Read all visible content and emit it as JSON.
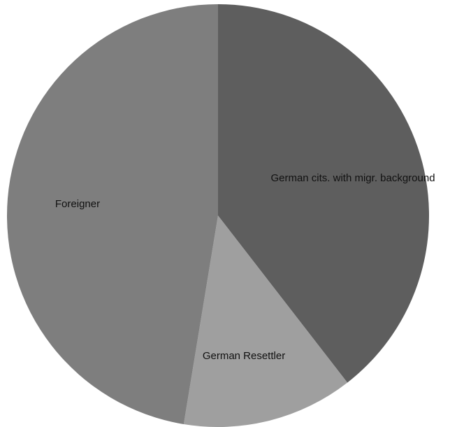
{
  "chart_data": {
    "type": "pie",
    "title": "",
    "series": [
      {
        "values": [
          39.5,
          13.1,
          47.4
        ]
      }
    ],
    "categories": [
      "German cits. with migr. background",
      "German Resettler",
      "Foreigner"
    ],
    "colors": [
      "#5e5e5e",
      "#9f9f9f",
      "#7e7e7e"
    ],
    "start_angle": "12 o'clock",
    "direction": "clockwise",
    "legend": "none",
    "labels": "inside slices"
  }
}
